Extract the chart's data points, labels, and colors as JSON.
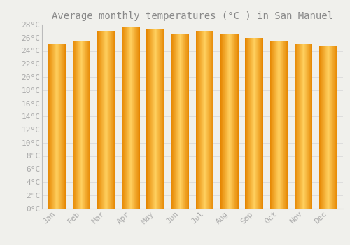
{
  "title": "Average monthly temperatures (°C ) in San Manuel",
  "months": [
    "Jan",
    "Feb",
    "Mar",
    "Apr",
    "May",
    "Jun",
    "Jul",
    "Aug",
    "Sep",
    "Oct",
    "Nov",
    "Dec"
  ],
  "temperatures": [
    25.0,
    25.5,
    27.0,
    27.6,
    27.4,
    26.5,
    27.0,
    26.5,
    26.0,
    25.5,
    25.0,
    24.7
  ],
  "bar_color_main": "#F5A623",
  "bar_color_light": "#FFD060",
  "bar_color_dark": "#E08800",
  "background_color": "#F0F0EC",
  "grid_color": "#DDDDDD",
  "ylim": [
    0,
    28
  ],
  "ytick_step": 2,
  "title_fontsize": 10,
  "tick_fontsize": 8,
  "font_color": "#AAAAAA",
  "title_color": "#888888"
}
